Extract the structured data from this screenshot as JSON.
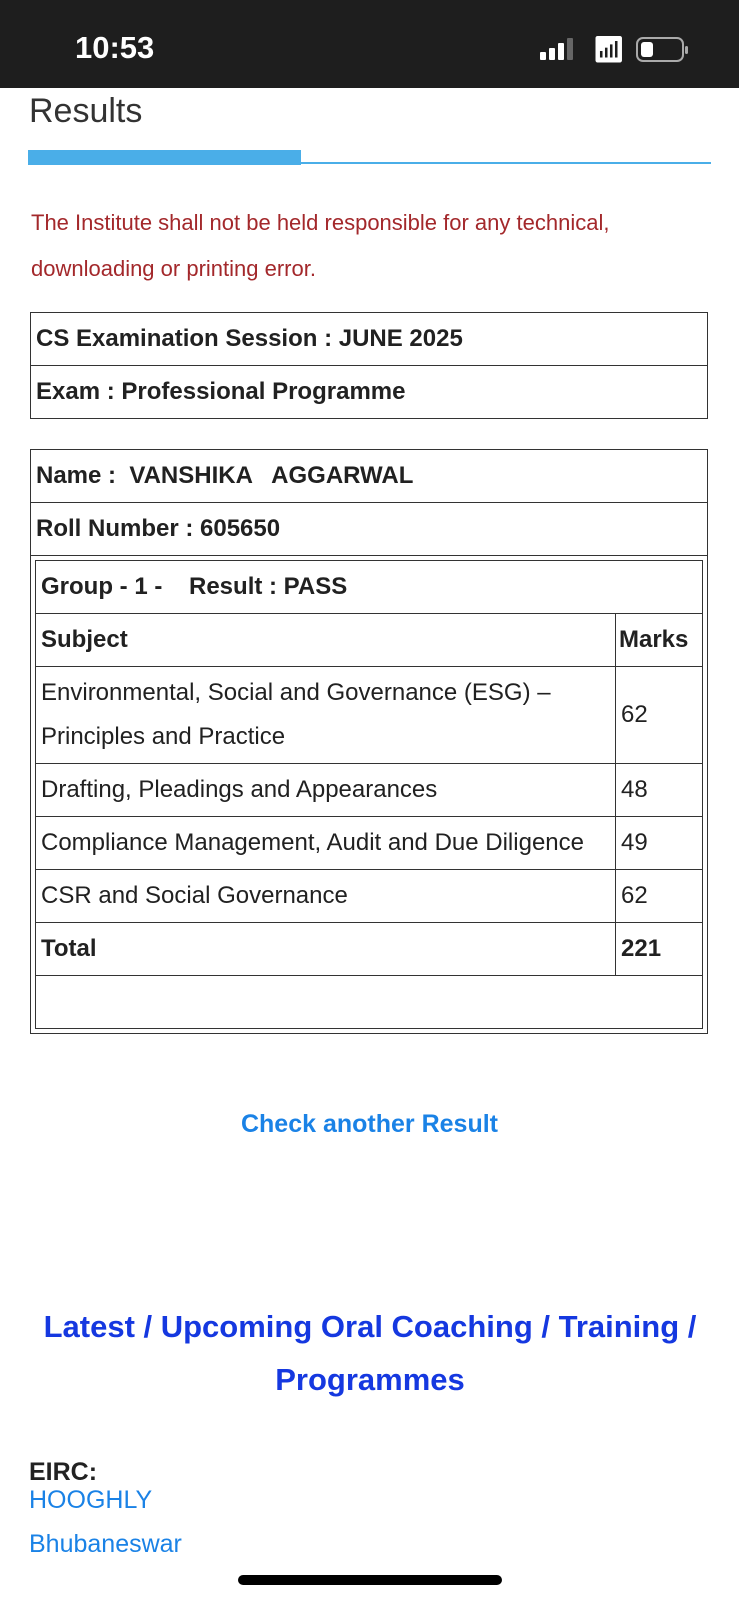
{
  "status_bar": {
    "time": "10:53",
    "signal_icon": "cellular-signal-icon",
    "wifi_icon": "wifi-icon",
    "battery_icon": "battery-icon"
  },
  "page": {
    "title": "Results",
    "disclaimer": "The Institute shall not be held responsible for any technical, downloading or printing error."
  },
  "exam": {
    "session": "CS Examination Session : JUNE 2025",
    "exam": "Exam : Professional Programme"
  },
  "candidate": {
    "name_label": "Name :",
    "name": "VANSHIKA   AGGARWAL",
    "roll": "Roll Number : 605650"
  },
  "result": {
    "group": "Group - 1 -",
    "result": "Result : PASS",
    "subject_header": "Subject",
    "marks_header": "Marks",
    "rows": [
      {
        "subject": "Environmental, Social and Governance (ESG) – Principles and Practice",
        "marks": "62"
      },
      {
        "subject": "Drafting, Pleadings and Appearances",
        "marks": "48"
      },
      {
        "subject": "Compliance Management, Audit and Due Diligence",
        "marks": "49"
      },
      {
        "subject": "CSR and Social Governance",
        "marks": "62"
      }
    ],
    "total_label": "Total",
    "total": "221"
  },
  "links": {
    "check_another": "Check another Result"
  },
  "programmes": {
    "heading": "Latest / Upcoming Oral Coaching / Training / Programmes",
    "region": "EIRC:",
    "cities": [
      "HOOGHLY",
      "Bhubaneswar"
    ]
  },
  "colors": {
    "accent": "#4aaee8",
    "disclaimer": "#a3282b",
    "link": "#1a82e6",
    "heading": "#1538e0"
  }
}
